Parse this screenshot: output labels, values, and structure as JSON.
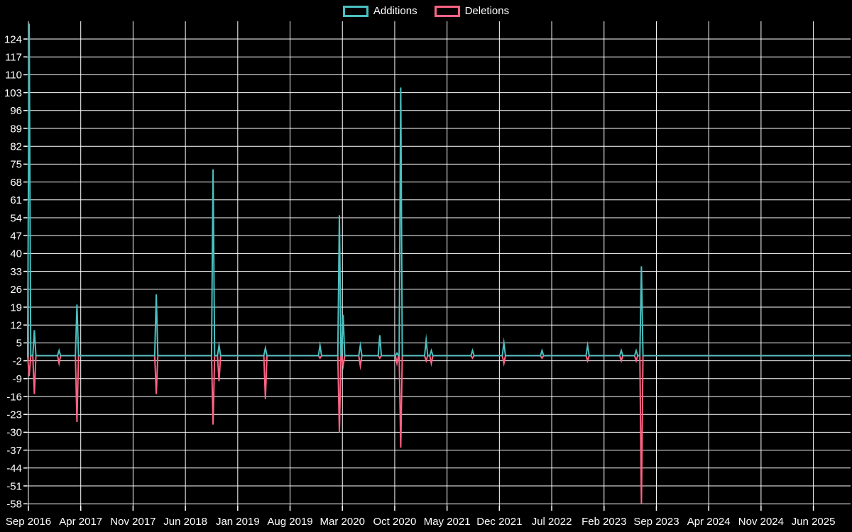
{
  "legend": {
    "additions_label": "Additions",
    "deletions_label": "Deletions"
  },
  "colors": {
    "additions": "#4bc0c0",
    "deletions": "#ff6384",
    "grid": "#ffffff",
    "text": "#ffffff",
    "background": "#000000"
  },
  "chart_data": {
    "type": "line",
    "legend_position": "top",
    "grid": true,
    "baseline_value": 0,
    "x_axis": {
      "tick_labels": [
        "Sep 2016",
        "Apr 2017",
        "Nov 2017",
        "Jun 2018",
        "Jan 2019",
        "Aug 2019",
        "Mar 2020",
        "Oct 2020",
        "May 2021",
        "Dec 2021",
        "Jul 2022",
        "Feb 2023",
        "Sep 2023",
        "Apr 2024",
        "Nov 2024",
        "Jun 2025"
      ],
      "months_per_tick": 7,
      "start": "2016-09",
      "end_t_months": 110
    },
    "y_axis": {
      "tick_labels": [
        124,
        117,
        110,
        103,
        96,
        89,
        82,
        75,
        68,
        61,
        54,
        47,
        40,
        33,
        26,
        19,
        12,
        5,
        -2,
        -9,
        -16,
        -23,
        -30,
        -37,
        -44,
        -51,
        -58
      ],
      "min": -58,
      "max": 124,
      "step": 7
    },
    "series": [
      {
        "name": "Additions",
        "color": "#4bc0c0",
        "value_key": "additions"
      },
      {
        "name": "Deletions",
        "color": "#ff6384",
        "value_key": "deletions"
      }
    ],
    "events": [
      {
        "date": "2016-09",
        "t_months": 0.1,
        "additions": 130,
        "deletions": -8
      },
      {
        "date": "2016-10",
        "t_months": 0.8,
        "additions": 10,
        "deletions": -15
      },
      {
        "date": "2017-01",
        "t_months": 4.1,
        "additions": 2,
        "deletions": -3
      },
      {
        "date": "2017-03",
        "t_months": 6.5,
        "additions": 20,
        "deletions": -26
      },
      {
        "date": "2018-02",
        "t_months": 17.1,
        "additions": 24,
        "deletions": -15
      },
      {
        "date": "2018-09",
        "t_months": 24.7,
        "additions": 73,
        "deletions": -27
      },
      {
        "date": "2018-10",
        "t_months": 25.5,
        "additions": 4,
        "deletions": -10
      },
      {
        "date": "2019-04",
        "t_months": 31.7,
        "additions": 3,
        "deletions": -17
      },
      {
        "date": "2019-12",
        "t_months": 39.0,
        "additions": 4,
        "deletions": -1
      },
      {
        "date": "2020-02",
        "t_months": 41.6,
        "additions": 55,
        "deletions": -30
      },
      {
        "date": "2020-03",
        "t_months": 42.1,
        "additions": 16,
        "deletions": -4
      },
      {
        "date": "2020-05",
        "t_months": 44.4,
        "additions": 4,
        "deletions": -4
      },
      {
        "date": "2020-08",
        "t_months": 47.0,
        "additions": 8,
        "deletions": -1
      },
      {
        "date": "2020-10",
        "t_months": 49.3,
        "additions": 1,
        "deletions": -3
      },
      {
        "date": "2020-11",
        "t_months": 49.8,
        "additions": 105,
        "deletions": -36
      },
      {
        "date": "2021-02",
        "t_months": 53.2,
        "additions": 6,
        "deletions": -2
      },
      {
        "date": "2021-03",
        "t_months": 53.9,
        "additions": 2,
        "deletions": -3
      },
      {
        "date": "2021-08",
        "t_months": 59.4,
        "additions": 2,
        "deletions": -1
      },
      {
        "date": "2021-12",
        "t_months": 63.6,
        "additions": 5,
        "deletions": -3
      },
      {
        "date": "2022-05",
        "t_months": 68.7,
        "additions": 2,
        "deletions": -1
      },
      {
        "date": "2022-11",
        "t_months": 74.8,
        "additions": 4,
        "deletions": -2
      },
      {
        "date": "2023-04",
        "t_months": 79.3,
        "additions": 2,
        "deletions": -2
      },
      {
        "date": "2023-06",
        "t_months": 81.3,
        "additions": 2,
        "deletions": -2
      },
      {
        "date": "2023-07",
        "t_months": 82.0,
        "additions": 35,
        "deletions": -58
      }
    ]
  }
}
